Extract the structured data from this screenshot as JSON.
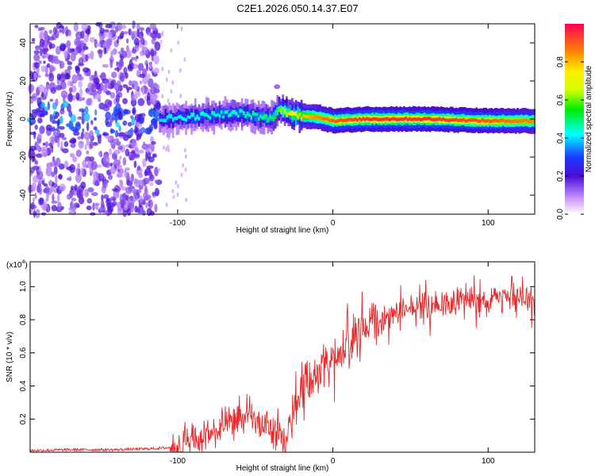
{
  "title": "C2E1.2026.050.14.37.E07",
  "chart_data": [
    {
      "type": "heatmap",
      "xlabel": "Height of straight line (km)",
      "ylabel": "Frequency (Hz)",
      "xlim": [
        -195,
        130
      ],
      "ylim": [
        -50,
        50
      ],
      "xticks": [
        -100,
        0,
        100
      ],
      "yticks": [
        -40,
        -20,
        0,
        20,
        40
      ],
      "colorbar": {
        "label": "Normalized spectral amplitude",
        "range": [
          0,
          1
        ],
        "ticks": [
          0.0,
          0.2,
          0.4,
          0.6,
          0.8
        ]
      },
      "ridge": [
        {
          "x": -110,
          "f": 0,
          "amp": 0.4
        },
        {
          "x": -80,
          "f": 2,
          "amp": 0.45
        },
        {
          "x": -60,
          "f": 3,
          "amp": 0.45
        },
        {
          "x": -40,
          "f": 0,
          "amp": 0.5
        },
        {
          "x": -35,
          "f": 5,
          "amp": 0.6
        },
        {
          "x": -25,
          "f": 2,
          "amp": 0.75
        },
        {
          "x": -10,
          "f": 1,
          "amp": 0.85
        },
        {
          "x": 0,
          "f": -1,
          "amp": 0.9
        },
        {
          "x": 20,
          "f": 0,
          "amp": 0.95
        },
        {
          "x": 60,
          "f": 0,
          "amp": 0.95
        },
        {
          "x": 100,
          "f": -1,
          "amp": 0.9
        },
        {
          "x": 130,
          "f": -1,
          "amp": 0.85
        }
      ]
    },
    {
      "type": "line",
      "xlabel": "Height of straight line (km)",
      "ylabel": "SNR (10 * v/v)",
      "scale_label": "(x10",
      "scale_exp": "4",
      "scale_close": ")",
      "xlim": [
        -195,
        130
      ],
      "ylim": [
        0,
        1.15
      ],
      "xticks": [
        -100,
        0,
        100
      ],
      "yticks": [
        0.2,
        0.4,
        0.6,
        0.8,
        1.0
      ],
      "ytick_labels": [
        "0.2",
        "0.4",
        "0.6",
        "0.8",
        "1.0"
      ],
      "color": "#e8282a",
      "series": [
        {
          "name": "SNR",
          "x": [
            -195,
            -170,
            -140,
            -120,
            -100,
            -90,
            -80,
            -70,
            -60,
            -50,
            -40,
            -35,
            -30,
            -25,
            -20,
            -10,
            0,
            10,
            20,
            30,
            40,
            50,
            60,
            70,
            80,
            90,
            100,
            110,
            120,
            130
          ],
          "y": [
            0.01,
            0.015,
            0.015,
            0.02,
            0.03,
            0.06,
            0.1,
            0.15,
            0.2,
            0.18,
            0.14,
            0.1,
            0.05,
            0.25,
            0.38,
            0.48,
            0.56,
            0.66,
            0.76,
            0.8,
            0.84,
            0.87,
            0.88,
            0.9,
            0.92,
            0.92,
            0.93,
            0.93,
            0.92,
            0.9
          ]
        }
      ]
    }
  ]
}
